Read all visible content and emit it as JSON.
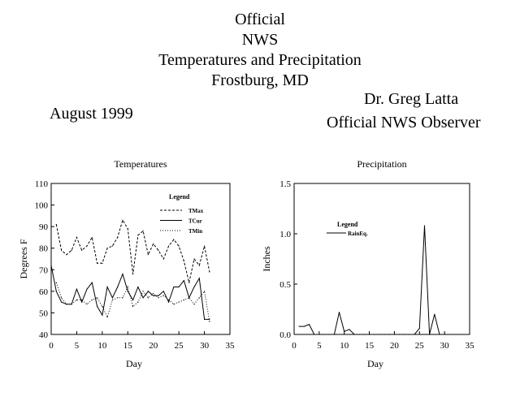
{
  "header": {
    "lines": [
      "Official",
      "NWS",
      "Temperatures and Precipitation",
      "Frostburg, MD"
    ],
    "period": "August 1999",
    "observer_name": "Dr. Greg Latta",
    "observer_title": "Official NWS Observer"
  },
  "chart_data": [
    {
      "type": "line",
      "title": "Temperatures",
      "xlabel": "Day",
      "ylabel": "Degrees F",
      "xlim": [
        0,
        35
      ],
      "ylim": [
        40,
        110
      ],
      "xticks": [
        0,
        5,
        10,
        15,
        20,
        25,
        30,
        35
      ],
      "yticks": [
        40,
        50,
        60,
        70,
        80,
        90,
        100,
        110
      ],
      "grid": false,
      "legend": {
        "title": "Legend",
        "placement": "top-right"
      },
      "series": [
        {
          "name": "TMax",
          "style": "dashed",
          "x": [
            1,
            2,
            3,
            4,
            5,
            6,
            7,
            8,
            9,
            10,
            11,
            12,
            13,
            14,
            15,
            16,
            17,
            18,
            19,
            20,
            21,
            22,
            23,
            24,
            25,
            26,
            27,
            28,
            29,
            30,
            31
          ],
          "values": [
            91,
            79,
            77,
            79,
            85,
            79,
            81,
            85,
            73,
            73,
            80,
            81,
            85,
            93,
            89,
            68,
            86,
            88,
            77,
            82,
            79,
            75,
            81,
            84,
            81,
            74,
            64,
            75,
            72,
            81,
            69
          ]
        },
        {
          "name": "TCur",
          "style": "solid",
          "x": [
            0,
            1,
            2,
            3,
            4,
            5,
            6,
            7,
            8,
            9,
            10,
            11,
            12,
            13,
            14,
            15,
            16,
            17,
            18,
            19,
            20,
            21,
            22,
            23,
            24,
            25,
            26,
            27,
            28,
            29,
            30,
            31
          ],
          "values": [
            72,
            60,
            55,
            54,
            54,
            61,
            55,
            61,
            64,
            53,
            49,
            62,
            57,
            62,
            68,
            60,
            56,
            62,
            57,
            60,
            58,
            58,
            60,
            55,
            62,
            62,
            65,
            57,
            62,
            66,
            47,
            47
          ]
        },
        {
          "name": "TMin",
          "style": "dotted",
          "x": [
            1,
            2,
            3,
            4,
            5,
            6,
            7,
            8,
            9,
            10,
            11,
            12,
            13,
            14,
            15,
            16,
            17,
            18,
            19,
            20,
            21,
            22,
            23,
            24,
            25,
            26,
            27,
            28,
            29,
            30,
            31
          ],
          "values": [
            64,
            57,
            54,
            54,
            56,
            56,
            54,
            56,
            57,
            53,
            48,
            56,
            57,
            57,
            62,
            53,
            55,
            60,
            57,
            59,
            57,
            58,
            56,
            54,
            55,
            56,
            57,
            54,
            57,
            60,
            46
          ]
        }
      ]
    },
    {
      "type": "line",
      "title": "Precipitation",
      "xlabel": "Day",
      "ylabel": "Inches",
      "xlim": [
        0,
        35
      ],
      "ylim": [
        0,
        1.5
      ],
      "xticks": [
        0,
        5,
        10,
        15,
        20,
        25,
        30,
        35
      ],
      "yticks": [
        0.0,
        0.5,
        1.0,
        1.5
      ],
      "ytick_labels": [
        "0.0",
        "0.5",
        "1.0",
        "1.5"
      ],
      "grid": false,
      "legend": {
        "title": "Legend",
        "placement": "top-left"
      },
      "series": [
        {
          "name": "RainEq.",
          "style": "solid",
          "x": [
            1,
            2,
            3,
            4,
            5,
            6,
            7,
            8,
            9,
            10,
            11,
            12,
            13,
            14,
            15,
            16,
            17,
            18,
            19,
            20,
            21,
            22,
            23,
            24,
            25,
            26,
            27,
            28,
            29,
            30
          ],
          "values": [
            0.08,
            0.08,
            0.1,
            0,
            0,
            0,
            0,
            0,
            0.22,
            0.03,
            0.05,
            0,
            0,
            0,
            0,
            0,
            0,
            0,
            0,
            0,
            0,
            0,
            0,
            0,
            0.06,
            1.08,
            0,
            0.2,
            0,
            0
          ]
        }
      ]
    }
  ]
}
